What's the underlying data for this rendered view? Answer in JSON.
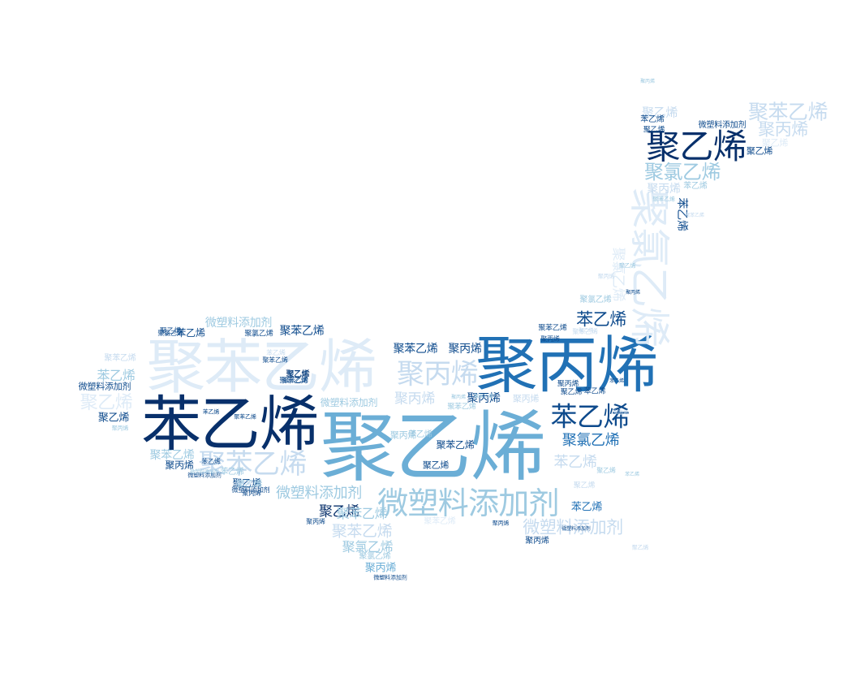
{
  "palette": {
    "c1": "#08306b",
    "c2": "#0d4a8c",
    "c3": "#2171b5",
    "c4": "#4a90c4",
    "c5": "#6baed6",
    "c6": "#9ecae1",
    "c7": "#c6dbef",
    "c8": "#deebf7"
  },
  "words": [
    {
      "text": "聚乙烯",
      "weight": 1.0,
      "tone": "c5"
    },
    {
      "text": "聚丙烯",
      "weight": 0.82,
      "tone": "c3"
    },
    {
      "text": "苯乙烯",
      "weight": 0.8,
      "tone": "c1"
    },
    {
      "text": "聚苯乙烯",
      "weight": 0.78,
      "tone": "c8"
    },
    {
      "text": "聚乙烯",
      "weight": 0.46,
      "tone": "c1"
    },
    {
      "text": "聚氯乙烯",
      "weight": 0.55,
      "tone": "c8"
    },
    {
      "text": "微塑料添加剂",
      "weight": 0.42,
      "tone": "c6"
    },
    {
      "text": "聚苯乙烯",
      "weight": 0.38,
      "tone": "c7"
    },
    {
      "text": "聚丙烯",
      "weight": 0.38,
      "tone": "c7"
    },
    {
      "text": "苯乙烯",
      "weight": 0.36,
      "tone": "c2"
    },
    {
      "text": "聚苯乙烯",
      "weight": 0.3,
      "tone": "c7"
    },
    {
      "text": "聚氯乙烯",
      "weight": 0.28,
      "tone": "c6"
    },
    {
      "text": "聚丙烯",
      "weight": 0.26,
      "tone": "c7"
    },
    {
      "text": "聚乙烯",
      "weight": 0.26,
      "tone": "c8"
    },
    {
      "text": "微塑料添加剂",
      "weight": 0.25,
      "tone": "c7"
    },
    {
      "text": "苯乙烯",
      "weight": 0.25,
      "tone": "c2"
    },
    {
      "text": "聚苯乙烯",
      "weight": 0.22,
      "tone": "c7"
    },
    {
      "text": "聚氯乙烯",
      "weight": 0.22,
      "tone": "c3"
    },
    {
      "text": "微塑料添加剂",
      "weight": 0.2,
      "tone": "c6"
    },
    {
      "text": "苯乙烯",
      "weight": 0.2,
      "tone": "c7"
    },
    {
      "text": "聚乙烯",
      "weight": 0.2,
      "tone": "c1"
    },
    {
      "text": "聚丙烯",
      "weight": 0.18,
      "tone": "c7"
    },
    {
      "text": "聚苯乙烯",
      "weight": 0.18,
      "tone": "c6"
    },
    {
      "text": "聚氯乙烯",
      "weight": 0.18,
      "tone": "c6"
    },
    {
      "text": "苯乙烯",
      "weight": 0.18,
      "tone": "c6"
    },
    {
      "text": "聚苯乙烯",
      "weight": 0.15,
      "tone": "c2"
    },
    {
      "text": "聚丙烯",
      "weight": 0.15,
      "tone": "c2"
    },
    {
      "text": "聚丙烯",
      "weight": 0.15,
      "tone": "c2"
    },
    {
      "text": "聚乙烯",
      "weight": 0.15,
      "tone": "c7"
    },
    {
      "text": "微塑料添加剂",
      "weight": 0.15,
      "tone": "c6"
    },
    {
      "text": "聚苯乙烯",
      "weight": 0.15,
      "tone": "c2"
    },
    {
      "text": "聚苯乙烯",
      "weight": 0.15,
      "tone": "c6"
    },
    {
      "text": "聚丙烯",
      "weight": 0.15,
      "tone": "c7"
    },
    {
      "text": "聚氯乙烯",
      "weight": 0.15,
      "tone": "c8"
    },
    {
      "text": "苯乙烯",
      "weight": 0.15,
      "tone": "c3"
    },
    {
      "text": "聚乙烯",
      "weight": 0.15,
      "tone": "c2"
    },
    {
      "text": "苯乙烯",
      "weight": 0.15,
      "tone": "c2"
    },
    {
      "text": "聚丙烯",
      "weight": 0.13,
      "tone": "c5"
    },
    {
      "text": "聚苯乙烯",
      "weight": 0.13,
      "tone": "c2"
    },
    {
      "text": "聚丙烯",
      "weight": 0.12,
      "tone": "c2"
    },
    {
      "text": "微塑料添加剂",
      "weight": 0.12,
      "tone": "c2"
    },
    {
      "text": "聚乙烯",
      "weight": 0.12,
      "tone": "c2"
    },
    {
      "text": "苯乙烯",
      "weight": 0.12,
      "tone": "c2"
    },
    {
      "text": "微塑料添加剂",
      "weight": 0.12,
      "tone": "c6"
    },
    {
      "text": "聚丙烯",
      "weight": 0.12,
      "tone": "c6"
    },
    {
      "text": "聚乙烯",
      "weight": 0.12,
      "tone": "c2"
    },
    {
      "text": "聚苯乙烯",
      "weight": 0.12,
      "tone": "c7"
    },
    {
      "text": "微塑料添加剂",
      "weight": 0.11,
      "tone": "c2"
    },
    {
      "text": "聚乙烯",
      "weight": 0.11,
      "tone": "c8"
    },
    {
      "text": "苯乙烯",
      "weight": 0.11,
      "tone": "c2"
    },
    {
      "text": "聚乙烯",
      "weight": 0.1,
      "tone": "c2"
    },
    {
      "text": "苯乙烯",
      "weight": 0.1,
      "tone": "c6"
    },
    {
      "text": "聚氯乙烯",
      "weight": 0.1,
      "tone": "c6"
    },
    {
      "text": "聚氯乙烯",
      "weight": 0.1,
      "tone": "c6"
    },
    {
      "text": "聚乙烯",
      "weight": 0.1,
      "tone": "c6"
    },
    {
      "text": "苯乙烯",
      "weight": 0.1,
      "tone": "c6"
    },
    {
      "text": "聚丙烯",
      "weight": 0.1,
      "tone": "c7"
    },
    {
      "text": "聚苯乙烯",
      "weight": 0.1,
      "tone": "c8"
    },
    {
      "text": "苯乙烯",
      "weight": 0.1,
      "tone": "c6"
    },
    {
      "text": "聚乙烯",
      "weight": 0.1,
      "tone": "c1"
    },
    {
      "text": "聚丙烯",
      "weight": 0.1,
      "tone": "c2"
    },
    {
      "text": "聚苯乙烯",
      "weight": 0.1,
      "tone": "c6"
    },
    {
      "text": "聚苯乙烯",
      "weight": 0.09,
      "tone": "c2"
    },
    {
      "text": "聚氯乙烯",
      "weight": 0.09,
      "tone": "c2"
    },
    {
      "text": "聚乙烯",
      "weight": 0.09,
      "tone": "c2"
    },
    {
      "text": "聚丙烯",
      "weight": 0.09,
      "tone": "c2"
    },
    {
      "text": "聚乙烯",
      "weight": 0.09,
      "tone": "c2"
    },
    {
      "text": "苯乙烯",
      "weight": 0.09,
      "tone": "c2"
    },
    {
      "text": "聚苯乙烯",
      "weight": 0.09,
      "tone": "c2"
    },
    {
      "text": "聚乙烯",
      "weight": 0.09,
      "tone": "c2"
    },
    {
      "text": "聚乙烯",
      "weight": 0.09,
      "tone": "c7"
    },
    {
      "text": "聚乙烯",
      "weight": 0.09,
      "tone": "c2"
    },
    {
      "text": "聚丙烯",
      "weight": 0.08,
      "tone": "c2"
    },
    {
      "text": "聚苯乙烯",
      "weight": 0.08,
      "tone": "c2"
    },
    {
      "text": "苯乙烯",
      "weight": 0.08,
      "tone": "c2"
    },
    {
      "text": "聚氯乙烯",
      "weight": 0.08,
      "tone": "c2"
    },
    {
      "text": "聚苯乙烯",
      "weight": 0.08,
      "tone": "c2"
    },
    {
      "text": "聚丙烯",
      "weight": 0.08,
      "tone": "c2"
    },
    {
      "text": "聚丙烯",
      "weight": 0.08,
      "tone": "c2"
    },
    {
      "text": "微塑料添加剂",
      "weight": 0.08,
      "tone": "c2"
    },
    {
      "text": "聚苯乙烯",
      "weight": 0.08,
      "tone": "c7"
    },
    {
      "text": "苯乙烯",
      "weight": 0.08,
      "tone": "c7"
    },
    {
      "text": "聚乙烯",
      "weight": 0.07,
      "tone": "c6"
    },
    {
      "text": "微塑料添加剂",
      "weight": 0.07,
      "tone": "c2"
    },
    {
      "text": "苯乙烯",
      "weight": 0.07,
      "tone": "c2"
    },
    {
      "text": "聚苯乙烯",
      "weight": 0.07,
      "tone": "c2"
    },
    {
      "text": "苯乙烯",
      "weight": 0.07,
      "tone": "c7"
    },
    {
      "text": "聚丙烯",
      "weight": 0.07,
      "tone": "c2"
    },
    {
      "text": "微塑料添加剂",
      "weight": 0.07,
      "tone": "c2"
    },
    {
      "text": "聚丙烯",
      "weight": 0.07,
      "tone": "c6"
    },
    {
      "text": "聚乙烯",
      "weight": 0.07,
      "tone": "c6"
    },
    {
      "text": "聚苯乙烯",
      "weight": 0.07,
      "tone": "c6"
    },
    {
      "text": "聚乙烯",
      "weight": 0.07,
      "tone": "c7"
    },
    {
      "text": "聚丙烯",
      "weight": 0.07,
      "tone": "c7"
    },
    {
      "text": "聚丙烯",
      "weight": 0.06,
      "tone": "c6"
    },
    {
      "text": "苯乙烯",
      "weight": 0.06,
      "tone": "c6"
    },
    {
      "text": "聚丙烯",
      "weight": 0.06,
      "tone": "c2"
    },
    {
      "text": "微塑料添加剂",
      "weight": 0.06,
      "tone": "c6"
    },
    {
      "text": "聚丙烯",
      "weight": 0.06,
      "tone": "c6"
    },
    {
      "text": "聚氯乙烯",
      "weight": 0.06,
      "tone": "c6"
    },
    {
      "text": "微塑料添加剂",
      "weight": 0.06,
      "tone": "c2"
    },
    {
      "text": "聚苯乙烯",
      "weight": 0.06,
      "tone": "c7"
    },
    {
      "text": "聚乙烯",
      "weight": 0.06,
      "tone": "c7"
    },
    {
      "text": "苯乙烯",
      "weight": 0.06,
      "tone": "c2"
    },
    {
      "text": "聚丙烯",
      "weight": 0.06,
      "tone": "c7"
    }
  ]
}
